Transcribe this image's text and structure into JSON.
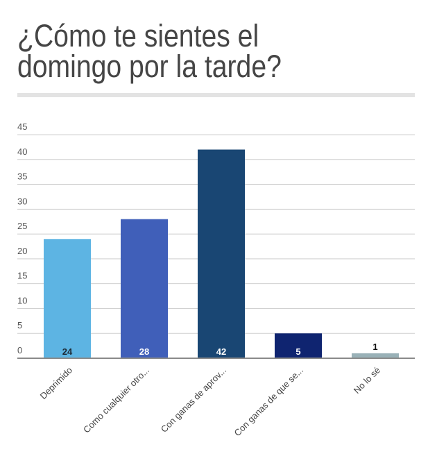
{
  "chart_data": {
    "type": "bar",
    "title_lines": [
      "¿Cómo te sientes el",
      "domingo por la tarde?"
    ],
    "categories": [
      "Deprimido",
      "Como cualquier otro...",
      "Con ganas de aprov...",
      "Con ganas de que se...",
      "No lo sé"
    ],
    "values": [
      24,
      28,
      42,
      5,
      1
    ],
    "colors": [
      "#5db4e3",
      "#405fb9",
      "#194673",
      "#0f2470",
      "#99b1b7"
    ],
    "label_colors": [
      "#1c2833",
      "#ffffff",
      "#ffffff",
      "#ffffff",
      "#111111"
    ],
    "ylim": [
      0,
      45
    ],
    "yticks": [
      0,
      5,
      10,
      15,
      20,
      25,
      30,
      35,
      40,
      45
    ],
    "grid": true,
    "legend": "none",
    "xlabel": "",
    "ylabel": ""
  }
}
